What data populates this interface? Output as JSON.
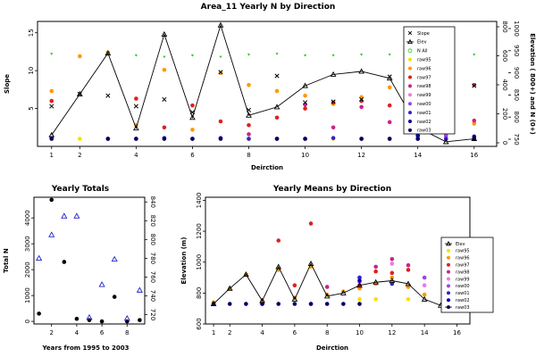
{
  "chart_data": [
    {
      "type": "scatter",
      "title": "Area_11 Yearly N by Direction",
      "xlabel": "Deirction",
      "ylabel": "Slope",
      "y2label": "Elevation ( 800+) and N (0+)",
      "xlim": [
        0.5,
        16.8
      ],
      "ylim": [
        0,
        16.5
      ],
      "xticks": [
        "1",
        "2",
        "4",
        "6",
        "8",
        "10",
        "12",
        "14",
        "16"
      ],
      "yticks": [
        "5",
        "10",
        "15"
      ],
      "y2_n_ticks": [
        "0",
        "200",
        "400",
        "600",
        "800"
      ],
      "y2_elev_ticks": [
        "750",
        "800",
        "850",
        "900",
        "950",
        "1000"
      ],
      "legend": [
        "Slope",
        "Elev",
        "N All",
        "raw95",
        "raw96",
        "raw97",
        "raw98",
        "raw99",
        "raw00",
        "raw01",
        "raw02",
        "raw03"
      ],
      "legend_position": "top-right",
      "colors": {
        "slope": "#000000",
        "elev": "#000000",
        "n_all": "#22cc22",
        "raw95": "#ffdd00",
        "raw96": "#ff9900",
        "raw97": "#e02020",
        "raw98": "#cc2288",
        "raw99": "#ee77ee",
        "raw00": "#9944ee",
        "raw01": "#3322cc",
        "raw02": "#0000aa",
        "raw03": "#000066"
      },
      "slope": {
        "x": [
          1,
          2,
          3,
          4,
          5,
          6,
          7,
          8,
          9,
          10,
          11,
          12,
          13,
          14,
          15,
          16
        ],
        "y": [
          5.3,
          6.9,
          6.7,
          5.3,
          6.2,
          4.5,
          9.8,
          4.8,
          9.3,
          5.8,
          5.9,
          6.2,
          9.2,
          7.8,
          5.7,
          8.0
        ]
      },
      "elev": {
        "x": [
          1,
          2,
          3,
          4,
          5,
          6,
          7,
          8,
          9,
          10,
          11,
          12,
          13,
          14,
          15,
          16
        ],
        "y": [
          1.5,
          6.9,
          12.3,
          2.4,
          14.8,
          3.8,
          16.0,
          4.1,
          5.2,
          8.0,
          9.5,
          9.9,
          9.0,
          2.5,
          0.6,
          1.0
        ]
      },
      "n_all": {
        "x": [
          1,
          2,
          3,
          4,
          5,
          6,
          7,
          8,
          9,
          10,
          11,
          12,
          13,
          14,
          15,
          16
        ],
        "y": [
          12.2,
          12.0,
          12.3,
          12.0,
          11.8,
          12.0,
          11.8,
          12.1,
          12.2,
          12.0,
          12.0,
          12.1,
          12.1,
          12.2,
          12.0,
          12.1
        ]
      },
      "series": [
        {
          "name": "raw95",
          "values": [
            1.0,
            1.0,
            1.0,
            1.0,
            1.0,
            1.0,
            1.0,
            1.0,
            1.0,
            1.0,
            1.0,
            1.0,
            1.0,
            1.0,
            1.0,
            1.0
          ]
        },
        {
          "name": "raw96",
          "values": [
            7.3,
            11.9,
            12.4,
            2.8,
            10.1,
            2.2,
            9.7,
            8.1,
            7.3,
            6.7,
            5.6,
            6.5,
            7.8,
            6.8,
            1.6,
            3.0
          ]
        },
        {
          "name": "raw97",
          "values": [
            6.0,
            null,
            null,
            6.3,
            2.5,
            5.4,
            3.3,
            2.8,
            3.8,
            5.0,
            5.8,
            6.0,
            5.4,
            null,
            null,
            8.1
          ]
        },
        {
          "name": "raw98",
          "values": [
            null,
            null,
            null,
            null,
            null,
            null,
            null,
            1.6,
            null,
            5.5,
            2.5,
            5.2,
            3.2,
            1.5,
            1.0,
            3.4
          ]
        },
        {
          "name": "raw99",
          "values": [
            null,
            null,
            null,
            null,
            null,
            null,
            null,
            null,
            null,
            null,
            null,
            null,
            null,
            null,
            1.9,
            null
          ]
        },
        {
          "name": "raw00",
          "values": [
            null,
            null,
            null,
            null,
            null,
            null,
            null,
            null,
            null,
            null,
            null,
            null,
            null,
            null,
            1.4,
            null
          ]
        },
        {
          "name": "raw01",
          "values": [
            1.1,
            null,
            1.0,
            1.0,
            1.1,
            1.0,
            1.1,
            1.0,
            1.0,
            1.0,
            1.1,
            1.0,
            1.0,
            1.0,
            1.0,
            1.0
          ]
        },
        {
          "name": "raw02",
          "values": [
            null,
            null,
            null,
            null,
            null,
            null,
            null,
            null,
            null,
            null,
            null,
            null,
            null,
            1.4,
            null,
            1.3
          ]
        },
        {
          "name": "raw03",
          "values": [
            1.0,
            null,
            1.0,
            1.0,
            1.0,
            1.0,
            1.0,
            null,
            1.0,
            1.0,
            null,
            1.0,
            1.0,
            1.0,
            null,
            1.0
          ]
        }
      ]
    },
    {
      "type": "scatter",
      "title": "Yearly Totals",
      "xlabel": "Years from 1995 to 2003",
      "ylabel": "Total N",
      "xlim": [
        0.6,
        9.4
      ],
      "ylim": [
        -100,
        4800
      ],
      "xticks": [
        "2",
        "4",
        "6",
        "8"
      ],
      "yticks": [
        "0",
        "1000",
        "2000",
        "3000",
        "4000"
      ],
      "y2ticks": [
        "720",
        "740",
        "760",
        "780",
        "800",
        "820",
        "840"
      ],
      "y2lim": [
        710,
        845
      ],
      "totals": {
        "x": [
          1,
          2,
          3,
          4,
          5,
          6,
          7,
          8,
          9
        ],
        "y": [
          300,
          4700,
          2300,
          100,
          50,
          0,
          950,
          0,
          50
        ]
      },
      "elevation": {
        "x": [
          1,
          2,
          3,
          4,
          5,
          6,
          7,
          8,
          9
        ],
        "y": [
          780,
          805,
          825,
          825,
          717,
          752,
          779,
          716,
          746
        ]
      }
    },
    {
      "type": "line",
      "title": "Yearly Means by Direction",
      "xlabel": "Deirction",
      "ylabel": "Elevation (m)",
      "xlim": [
        0.5,
        16.8
      ],
      "ylim": [
        600,
        1420
      ],
      "xticks": [
        "1",
        "2",
        "4",
        "6",
        "8",
        "10",
        "12",
        "14",
        "16"
      ],
      "yticks": [
        "600",
        "800",
        "1000",
        "1200",
        "1400"
      ],
      "legend": [
        "Elev",
        "raw95",
        "raw96",
        "raw97",
        "raw98",
        "raw99",
        "raw00",
        "raw01",
        "raw02",
        "raw03"
      ],
      "legend_position": "right",
      "elev": {
        "x": [
          1,
          2,
          3,
          4,
          5,
          6,
          7,
          8,
          9,
          10,
          11,
          12,
          13,
          14,
          15,
          16
        ],
        "y": [
          730,
          830,
          920,
          750,
          970,
          760,
          990,
          780,
          800,
          850,
          870,
          880,
          860,
          760,
          720,
          730
        ]
      },
      "series": [
        {
          "name": "raw95",
          "values": [
            null,
            null,
            null,
            null,
            null,
            null,
            null,
            null,
            null,
            760,
            760,
            null,
            760,
            null,
            null,
            null
          ]
        },
        {
          "name": "raw96",
          "values": [
            740,
            830,
            920,
            750,
            950,
            770,
            970,
            790,
            810,
            830,
            860,
            900,
            840,
            790,
            null,
            760
          ]
        },
        {
          "name": "raw97",
          "values": [
            null,
            null,
            null,
            null,
            1140,
            850,
            1250,
            null,
            null,
            850,
            940,
            930,
            950,
            null,
            null,
            null
          ]
        },
        {
          "name": "raw98",
          "values": [
            null,
            null,
            null,
            null,
            null,
            null,
            null,
            840,
            null,
            900,
            970,
            1020,
            980,
            null,
            null,
            null
          ]
        },
        {
          "name": "raw99",
          "values": [
            null,
            null,
            null,
            null,
            null,
            null,
            null,
            null,
            null,
            870,
            null,
            990,
            null,
            850,
            null,
            null
          ]
        },
        {
          "name": "raw00",
          "values": [
            null,
            null,
            null,
            null,
            null,
            null,
            null,
            null,
            null,
            null,
            null,
            null,
            null,
            900,
            null,
            null
          ]
        },
        {
          "name": "raw01",
          "values": [
            null,
            null,
            null,
            730,
            null,
            null,
            730,
            null,
            null,
            900,
            null,
            860,
            null,
            null,
            null,
            null
          ]
        },
        {
          "name": "raw02",
          "values": [
            null,
            null,
            null,
            null,
            null,
            null,
            null,
            null,
            null,
            880,
            null,
            null,
            null,
            null,
            null,
            null
          ]
        },
        {
          "name": "raw03",
          "values": [
            730,
            730,
            730,
            730,
            730,
            730,
            730,
            730,
            730,
            730,
            null,
            null,
            null,
            null,
            null,
            null
          ]
        }
      ]
    }
  ]
}
